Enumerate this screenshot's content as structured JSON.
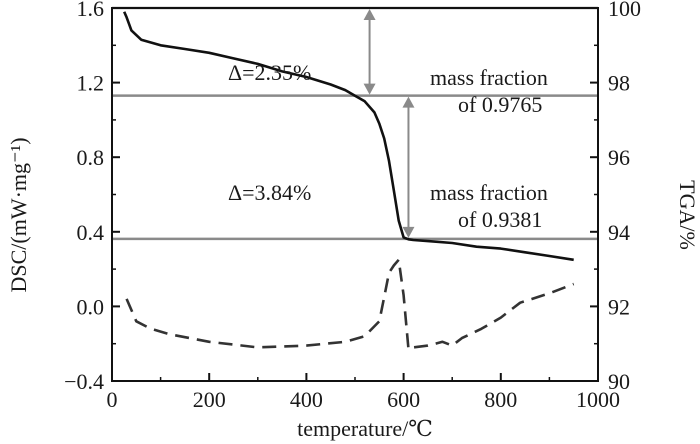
{
  "chart_data": {
    "type": "line",
    "title": "",
    "xlabel": "temperature/℃",
    "ylabel": "DSC/(mW·mg⁻¹)",
    "y2label": "TGA/%",
    "xlim": [
      0,
      1000
    ],
    "ylim": [
      -0.4,
      1.6
    ],
    "y2lim": [
      90,
      100
    ],
    "x_ticks": [
      "0",
      "200",
      "400",
      "600",
      "800",
      "1000"
    ],
    "y_ticks": [
      "−0.4",
      "0.0",
      "0.4",
      "0.8",
      "1.2",
      "1.6"
    ],
    "y2_ticks": [
      "90",
      "92",
      "94",
      "96",
      "98",
      "100"
    ],
    "grid": false,
    "legend": "none",
    "series": [
      {
        "axis": "right",
        "style": "solid",
        "color": "#111111",
        "x": [
          25,
          30,
          40,
          60,
          100,
          150,
          200,
          250,
          300,
          350,
          400,
          450,
          480,
          500,
          520,
          540,
          550,
          560,
          570,
          580,
          590,
          600,
          610,
          620,
          650,
          700,
          750,
          800,
          850,
          900,
          950
        ],
        "y": [
          99.9,
          99.75,
          99.4,
          99.15,
          99.0,
          98.9,
          98.8,
          98.65,
          98.5,
          98.3,
          98.15,
          97.95,
          97.8,
          97.65,
          97.5,
          97.2,
          96.9,
          96.5,
          95.9,
          95.1,
          94.3,
          93.85,
          93.8,
          93.78,
          93.75,
          93.7,
          93.6,
          93.55,
          93.45,
          93.35,
          93.25
        ]
      },
      {
        "axis": "left",
        "style": "dashed",
        "color": "#333333",
        "x": [
          30,
          50,
          80,
          120,
          200,
          300,
          400,
          480,
          520,
          550,
          560,
          570,
          580,
          590,
          600,
          610,
          620,
          650,
          680,
          700,
          720,
          760,
          800,
          840,
          900,
          950
        ],
        "y": [
          0.04,
          -0.08,
          -0.12,
          -0.15,
          -0.19,
          -0.22,
          -0.21,
          -0.19,
          -0.16,
          -0.08,
          0.05,
          0.18,
          0.22,
          0.25,
          0.06,
          -0.23,
          -0.22,
          -0.21,
          -0.19,
          -0.21,
          -0.17,
          -0.12,
          -0.06,
          0.02,
          0.07,
          0.12
        ]
      }
    ],
    "annotations": [
      {
        "id": "delta-1",
        "text": "Δ=2.35%"
      },
      {
        "id": "delta-2",
        "text": "Δ=3.84%"
      },
      {
        "id": "mf1-line1",
        "text": "mass fraction"
      },
      {
        "id": "mf1-line2",
        "text": "of 0.9765"
      },
      {
        "id": "mf2-line1",
        "text": "mass fraction"
      },
      {
        "id": "mf2-line2",
        "text": "of 0.9381"
      }
    ],
    "reference_lines": {
      "tga_levels": [
        100,
        97.65,
        93.81
      ],
      "color": "#8a8a8a",
      "arrow_1": {
        "x": 530,
        "from": 100,
        "to": 97.65
      },
      "arrow_2": {
        "x": 610,
        "from": 97.65,
        "to": 93.81
      }
    }
  }
}
